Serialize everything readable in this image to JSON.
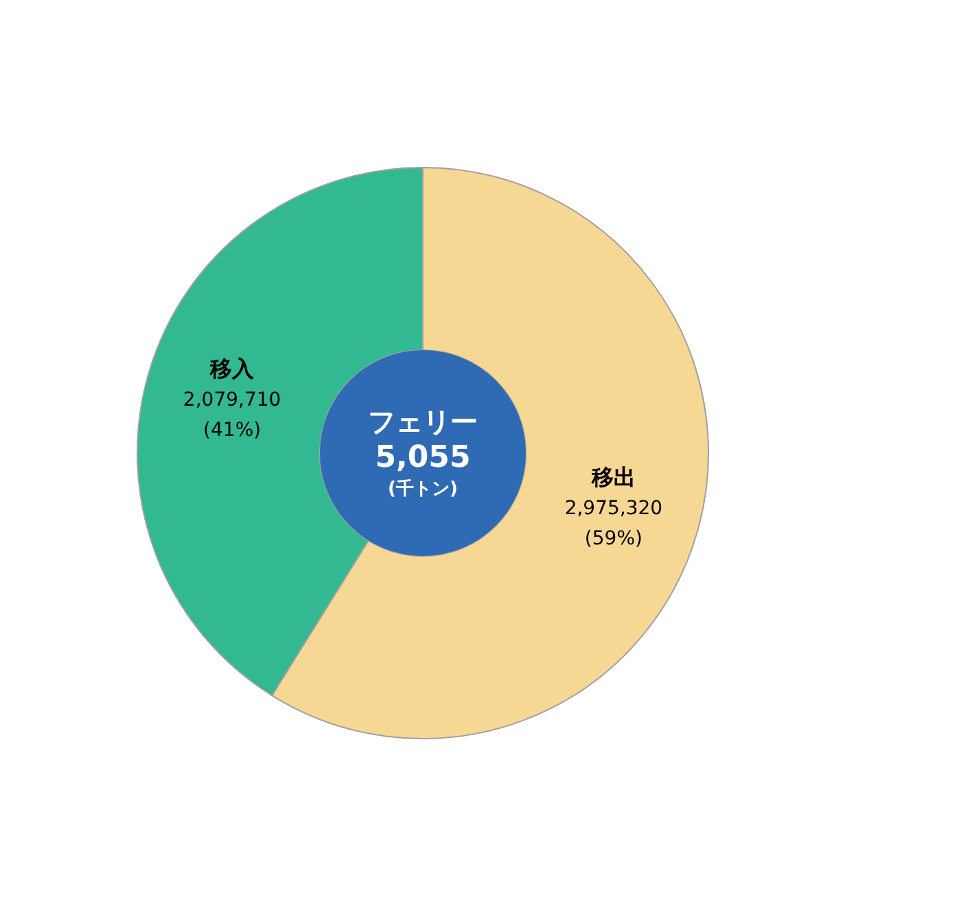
{
  "chart_data": {
    "type": "donut",
    "categories": [
      "移出",
      "移入"
    ],
    "values": [
      2975320,
      2079710
    ],
    "colors": [
      "#f7d794",
      "#33b992"
    ],
    "value_labels": [
      "2,975,320\n(59%)",
      "2,079,710\n(41%)"
    ],
    "annotations": [
      "フェリー",
      "5,055",
      "(千トン)"
    ],
    "legend": false
  }
}
